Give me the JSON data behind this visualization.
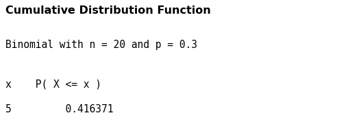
{
  "title": "Cumulative Distribution Function",
  "line1": "Binomial with n = 20 and p = 0.3",
  "col_header": "x    P( X <= x )",
  "data_row": "5         0.416371",
  "background_color": "#ffffff",
  "title_fontsize": 11.5,
  "body_fontsize": 10.5,
  "title_font_weight": "bold",
  "title_font_family": "DejaVu Sans",
  "mono_font_family": "DejaVu Sans Mono",
  "text_color": "#000000",
  "fig_width": 5.08,
  "fig_height": 1.97,
  "dpi": 100
}
